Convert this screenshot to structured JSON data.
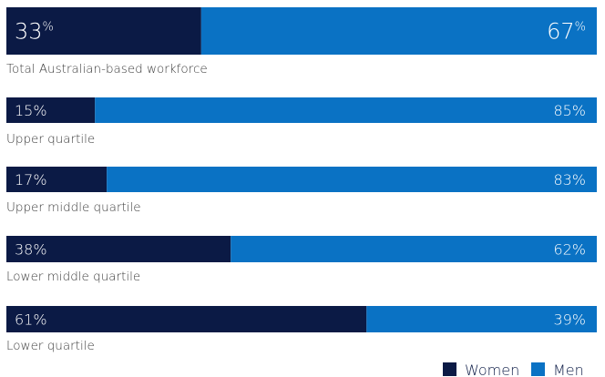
{
  "chart_data": {
    "type": "bar",
    "orientation": "horizontal",
    "stacked": true,
    "unit": "%",
    "categories": [
      "Total Australian-based workforce",
      "Upper quartile",
      "Upper middle quartile",
      "Lower middle quartile",
      "Lower quartile"
    ],
    "series": [
      {
        "name": "Women",
        "color": "#0b1a45",
        "values": [
          33,
          15,
          17,
          38,
          61
        ]
      },
      {
        "name": "Men",
        "color": "#0a72c4",
        "values": [
          67,
          85,
          83,
          62,
          39
        ]
      }
    ],
    "xlim": [
      0,
      100
    ],
    "legend": "bottom-right",
    "grid": false
  }
}
